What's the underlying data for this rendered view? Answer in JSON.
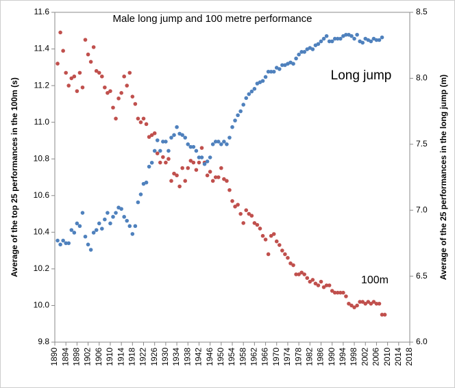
{
  "chart_data": {
    "type": "scatter",
    "title": "Male long jump and 100 metre performance",
    "y_label": "Average of the top 25 performances in the 100m (s)",
    "y2_label": "Average of the 25 performances in the long jump (m)",
    "xlim": [
      1890,
      2018
    ],
    "xticks": [
      1890,
      1894,
      1898,
      1902,
      1906,
      1910,
      1914,
      1918,
      1922,
      1926,
      1930,
      1934,
      1938,
      1942,
      1946,
      1950,
      1954,
      1958,
      1962,
      1966,
      1970,
      1974,
      1978,
      1982,
      1986,
      1990,
      1994,
      1998,
      2002,
      2006,
      2010,
      2014,
      2018
    ],
    "ylim": [
      9.8,
      11.6
    ],
    "yticks": [
      9.8,
      {
        "value": 10,
        "label": "10.0"
      },
      10.2,
      10.4,
      10.6,
      10.8,
      {
        "value": 11,
        "label": "11.0"
      },
      11.2,
      11.4,
      11.6
    ],
    "y2lim": [
      6,
      8.5
    ],
    "y2ticks": [
      {
        "value": 6,
        "label": "6.0"
      },
      6.5,
      {
        "value": 7,
        "label": "7.0"
      },
      7.5,
      {
        "value": 8,
        "label": "8.0"
      },
      8.5
    ],
    "series": [
      {
        "name": "100m",
        "color": "#c0504d",
        "x": [
          1891,
          1892,
          1893,
          1894,
          1895,
          1896,
          1897,
          1898,
          1899,
          1900,
          1901,
          1902,
          1903,
          1904,
          1905,
          1906,
          1907,
          1908,
          1909,
          1910,
          1911,
          1912,
          1913,
          1914,
          1915,
          1916,
          1917,
          1918,
          1919,
          1920,
          1921,
          1922,
          1923,
          1924,
          1925,
          1926,
          1927,
          1928,
          1929,
          1930,
          1931,
          1932,
          1933,
          1934,
          1935,
          1936,
          1937,
          1938,
          1939,
          1940,
          1941,
          1942,
          1943,
          1944,
          1945,
          1946,
          1947,
          1948,
          1949,
          1950,
          1951,
          1952,
          1953,
          1954,
          1955,
          1956,
          1957,
          1958,
          1959,
          1960,
          1961,
          1962,
          1963,
          1964,
          1965,
          1966,
          1967,
          1968,
          1969,
          1970,
          1971,
          1972,
          1973,
          1974,
          1975,
          1976,
          1977,
          1978,
          1979,
          1980,
          1981,
          1982,
          1983,
          1984,
          1985,
          1986,
          1987,
          1988,
          1989,
          1990,
          1991,
          1992,
          1993,
          1994,
          1995,
          1996,
          1997,
          1998,
          1999,
          2000,
          2001,
          2002,
          2003,
          2004,
          2005,
          2006,
          2007,
          2008,
          2009
        ],
        "values": [
          11.32,
          11.49,
          11.39,
          11.27,
          11.2,
          11.24,
          11.25,
          11.17,
          11.27,
          11.19,
          11.45,
          11.37,
          11.33,
          11.41,
          11.28,
          11.27,
          11.25,
          11.19,
          11.16,
          11.17,
          11.08,
          11.02,
          11.13,
          11.16,
          11.25,
          11.2,
          11.27,
          11.14,
          11.1,
          11.02,
          11.0,
          11.02,
          10.99,
          10.92,
          10.93,
          10.94,
          10.83,
          10.78,
          10.81,
          10.78,
          10.8,
          10.68,
          10.72,
          10.71,
          10.65,
          10.75,
          10.68,
          10.75,
          10.79,
          10.78,
          10.74,
          10.78,
          10.86,
          10.78,
          10.71,
          10.73,
          10.68,
          10.7,
          10.7,
          10.75,
          10.69,
          10.68,
          10.63,
          10.57,
          10.54,
          10.55,
          10.5,
          10.45,
          10.52,
          10.5,
          10.49,
          10.45,
          10.44,
          10.42,
          10.38,
          10.36,
          10.28,
          10.38,
          10.39,
          10.35,
          10.33,
          10.3,
          10.28,
          10.26,
          10.23,
          10.22,
          10.17,
          10.17,
          10.18,
          10.17,
          10.15,
          10.13,
          10.14,
          10.12,
          10.11,
          10.13,
          10.1,
          10.11,
          10.11,
          10.08,
          10.07,
          10.07,
          10.07,
          10.07,
          10.05,
          10.01,
          10.0,
          9.99,
          10.0,
          10.02,
          10.02,
          10.01,
          10.02,
          10.01,
          10.02,
          10.01,
          10.01,
          9.95,
          9.95
        ]
      },
      {
        "name": "Long jump",
        "color": "#4f81bd",
        "axis": "y2",
        "x": [
          1891,
          1892,
          1893,
          1894,
          1895,
          1896,
          1897,
          1898,
          1899,
          1900,
          1901,
          1902,
          1903,
          1904,
          1905,
          1906,
          1907,
          1908,
          1909,
          1910,
          1911,
          1912,
          1913,
          1914,
          1915,
          1916,
          1917,
          1918,
          1919,
          1920,
          1921,
          1922,
          1923,
          1924,
          1925,
          1926,
          1927,
          1928,
          1929,
          1930,
          1931,
          1932,
          1933,
          1934,
          1935,
          1936,
          1937,
          1938,
          1939,
          1940,
          1941,
          1942,
          1943,
          1944,
          1945,
          1946,
          1947,
          1948,
          1949,
          1950,
          1951,
          1952,
          1953,
          1954,
          1955,
          1956,
          1957,
          1958,
          1959,
          1960,
          1961,
          1962,
          1963,
          1964,
          1965,
          1966,
          1967,
          1968,
          1969,
          1970,
          1971,
          1972,
          1973,
          1974,
          1975,
          1976,
          1977,
          1978,
          1979,
          1980,
          1981,
          1982,
          1983,
          1984,
          1985,
          1986,
          1987,
          1988,
          1989,
          1990,
          1991,
          1992,
          1993,
          1994,
          1995,
          1996,
          1997,
          1998,
          1999,
          2000,
          2001,
          2002,
          2003,
          2004,
          2005,
          2006,
          2007,
          2008
        ],
        "values": [
          6.77,
          6.74,
          6.77,
          6.75,
          6.75,
          6.85,
          6.83,
          6.9,
          6.88,
          6.98,
          6.8,
          6.74,
          6.7,
          6.83,
          6.85,
          6.9,
          6.86,
          6.93,
          6.98,
          6.9,
          6.95,
          6.98,
          7.02,
          7.01,
          6.95,
          6.92,
          6.88,
          6.82,
          6.88,
          7.06,
          7.12,
          7.2,
          7.21,
          7.33,
          7.36,
          7.45,
          7.53,
          7.45,
          7.52,
          7.52,
          7.45,
          7.55,
          7.57,
          7.63,
          7.58,
          7.57,
          7.55,
          7.5,
          7.48,
          7.48,
          7.45,
          7.4,
          7.4,
          7.35,
          7.37,
          7.4,
          7.5,
          7.52,
          7.52,
          7.5,
          7.52,
          7.5,
          7.55,
          7.63,
          7.68,
          7.72,
          7.75,
          7.8,
          7.85,
          7.88,
          7.9,
          7.92,
          7.96,
          7.97,
          7.98,
          8.01,
          8.05,
          8.05,
          8.05,
          8.08,
          8.07,
          8.1,
          8.1,
          8.11,
          8.12,
          8.11,
          8.15,
          8.18,
          8.2,
          8.2,
          8.22,
          8.23,
          8.22,
          8.25,
          8.26,
          8.28,
          8.3,
          8.32,
          8.28,
          8.28,
          8.3,
          8.3,
          8.3,
          8.32,
          8.33,
          8.33,
          8.32,
          8.3,
          8.33,
          8.28,
          8.27,
          8.3,
          8.29,
          8.28,
          8.3,
          8.29,
          8.29,
          8.31
        ]
      }
    ]
  }
}
